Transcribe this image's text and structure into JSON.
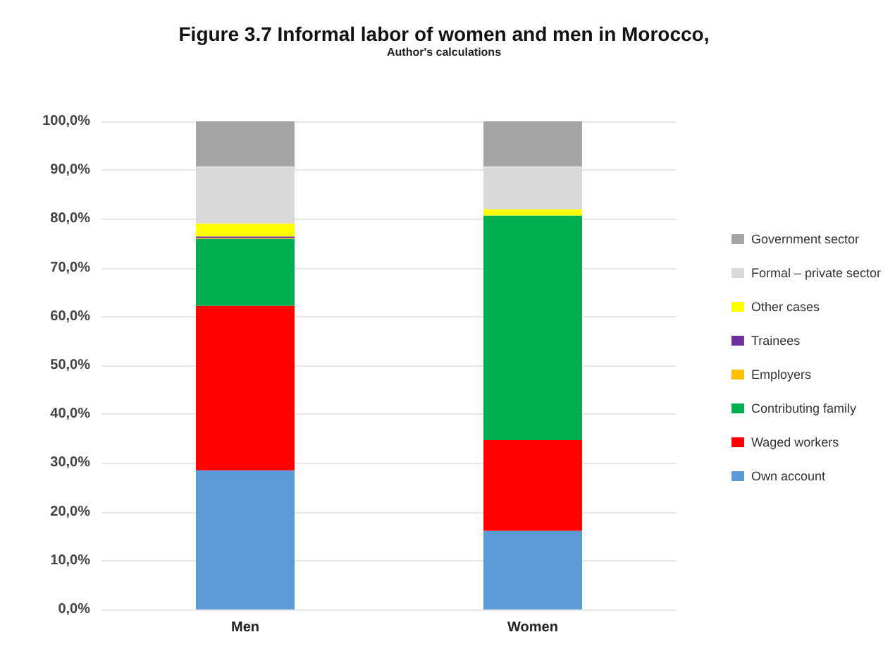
{
  "chart_data": {
    "type": "bar",
    "title": "Figure 3.7 Informal labor of women and men in Morocco,",
    "subtitle": "Author's calculations",
    "categories": [
      "Men",
      "Women"
    ],
    "stacked": true,
    "grid": "y",
    "legend": "right",
    "ylim": [
      0,
      100
    ],
    "yticks": [
      {
        "value": 0,
        "label": "0,0%"
      },
      {
        "value": 10,
        "label": "10,0%"
      },
      {
        "value": 20,
        "label": "20,0%"
      },
      {
        "value": 30,
        "label": "30,0%"
      },
      {
        "value": 40,
        "label": "40,0%"
      },
      {
        "value": 50,
        "label": "50,0%"
      },
      {
        "value": 60,
        "label": "60,0%"
      },
      {
        "value": 70,
        "label": "70,0%"
      },
      {
        "value": 80,
        "label": "80,0%"
      },
      {
        "value": 90,
        "label": "90,0%"
      },
      {
        "value": 100,
        "label": "100,0%"
      }
    ],
    "series": [
      {
        "name": "Own account",
        "color": "#5b9bd5",
        "values": [
          28.5,
          16.1
        ]
      },
      {
        "name": "Waged workers",
        "color": "#ff0000",
        "values": [
          33.7,
          18.6
        ]
      },
      {
        "name": "Contributing family",
        "color": "#00b050",
        "values": [
          13.7,
          46.0
        ]
      },
      {
        "name": "Employers",
        "color": "#ffc000",
        "values": [
          0.2,
          0
        ]
      },
      {
        "name": "Trainees",
        "color": "#7030a0",
        "values": [
          0.3,
          0
        ]
      },
      {
        "name": "Other cases",
        "color": "#ffff00",
        "values": [
          2.7,
          1.3
        ]
      },
      {
        "name": "Formal – private sector",
        "color": "#d9d9d9",
        "values": [
          11.7,
          8.8
        ]
      },
      {
        "name": "Government sector",
        "color": "#a5a5a5",
        "values": [
          9.2,
          9.2
        ]
      }
    ]
  }
}
